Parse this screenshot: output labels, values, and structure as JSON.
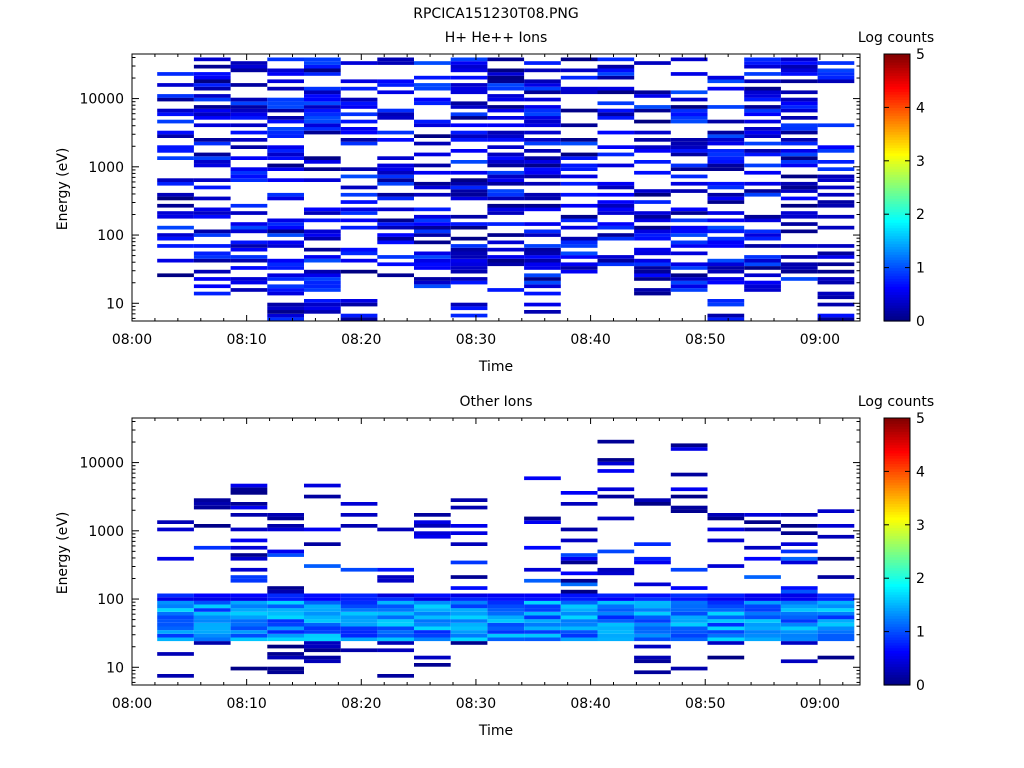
{
  "figure": {
    "title": "RPCICA151230T08.PNG"
  },
  "chart_data": [
    {
      "type": "heatmap",
      "title": "H+ He++ Ions",
      "xlabel": "Time",
      "ylabel": "Energy (eV)",
      "x_ticks": [
        "08:00",
        "08:10",
        "08:20",
        "08:30",
        "08:40",
        "08:50",
        "09:00"
      ],
      "x_range_minutes": [
        0,
        63.5
      ],
      "y_scale": "log",
      "y_range": [
        5.5,
        45000
      ],
      "y_ticks": [
        10,
        100,
        1000,
        10000
      ],
      "y_tick_labels": [
        "10",
        "100",
        "1000",
        "10000"
      ],
      "colorbar": {
        "label": "Log counts",
        "range": [
          0,
          5
        ],
        "ticks": [
          "0",
          "1",
          "2",
          "3",
          "4",
          "5"
        ],
        "colormap": "jet"
      },
      "time_bin_starts_min": [
        2.2,
        5.4,
        8.6,
        11.8,
        15.0,
        18.2,
        21.4,
        24.6,
        27.8,
        31.0,
        34.2,
        37.4,
        40.6,
        43.8,
        47.0,
        50.2,
        53.4,
        56.6,
        59.8
      ],
      "time_bin_width_min": 3.2,
      "energy_range_per_column": [
        [
          25,
          40000
        ],
        [
          12,
          40000
        ],
        [
          15,
          40000
        ],
        [
          5.5,
          40000
        ],
        [
          5.5,
          40000
        ],
        [
          5.5,
          40000
        ],
        [
          25,
          40000
        ],
        [
          10,
          40000
        ],
        [
          5.5,
          40000
        ],
        [
          15,
          40000
        ],
        [
          5.5,
          40000
        ],
        [
          25,
          40000
        ],
        [
          30,
          40000
        ],
        [
          12,
          40000
        ],
        [
          15,
          40000
        ],
        [
          5.5,
          40000
        ],
        [
          15,
          40000
        ],
        [
          20,
          40000
        ],
        [
          5.5,
          40000
        ]
      ],
      "value_range_log_counts": [
        0.0,
        1.0
      ],
      "dominant_color": "#0000cc"
    },
    {
      "type": "heatmap",
      "title": "Other Ions",
      "xlabel": "Time",
      "ylabel": "Energy (eV)",
      "x_ticks": [
        "08:00",
        "08:10",
        "08:20",
        "08:30",
        "08:40",
        "08:50",
        "09:00"
      ],
      "x_range_minutes": [
        0,
        63.5
      ],
      "y_scale": "log",
      "y_range": [
        5.5,
        45000
      ],
      "y_ticks": [
        10,
        100,
        1000,
        10000
      ],
      "y_tick_labels": [
        "10",
        "100",
        "1000",
        "10000"
      ],
      "colorbar": {
        "label": "Log counts",
        "range": [
          0,
          5
        ],
        "ticks": [
          "0",
          "1",
          "2",
          "3",
          "4",
          "5"
        ],
        "colormap": "jet"
      },
      "time_bin_starts_min": [
        2.2,
        5.4,
        8.6,
        11.8,
        15.0,
        18.2,
        21.4,
        24.6,
        27.8,
        31.0,
        34.2,
        37.4,
        40.6,
        43.8,
        47.0,
        50.2,
        53.4,
        56.6,
        59.8
      ],
      "time_bin_width_min": 3.2,
      "band_energy_range": [
        25,
        120
      ],
      "band_value_range_log_counts": [
        0.8,
        1.7
      ],
      "max_energy_per_column": [
        1600,
        4000,
        5000,
        4500,
        6000,
        3500,
        1500,
        1800,
        5500,
        4500,
        7500,
        5000,
        36000,
        4000,
        21000,
        2300,
        2300,
        2000,
        2100
      ]
    }
  ]
}
